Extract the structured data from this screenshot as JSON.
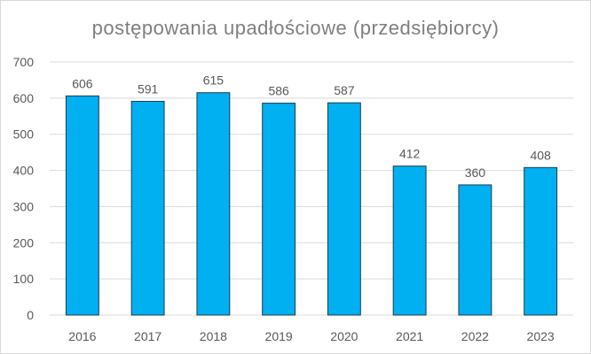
{
  "chart_data": {
    "type": "bar",
    "title": "postępowania upadłościowe (przedsiębiorcy)",
    "xlabel": "",
    "ylabel": "",
    "categories": [
      "2016",
      "2017",
      "2018",
      "2019",
      "2020",
      "2021",
      "2022",
      "2023"
    ],
    "values": [
      606,
      591,
      615,
      586,
      587,
      412,
      360,
      408
    ],
    "ylim": [
      0,
      700
    ],
    "yticks": [
      0,
      100,
      200,
      300,
      400,
      500,
      600,
      700
    ],
    "grid": true,
    "data_labels": true,
    "bar_color": "#00b0f0",
    "bar_edge_color": "#1f3a4d",
    "grid_color": "#d9d9d9",
    "text_color": "#595959"
  }
}
